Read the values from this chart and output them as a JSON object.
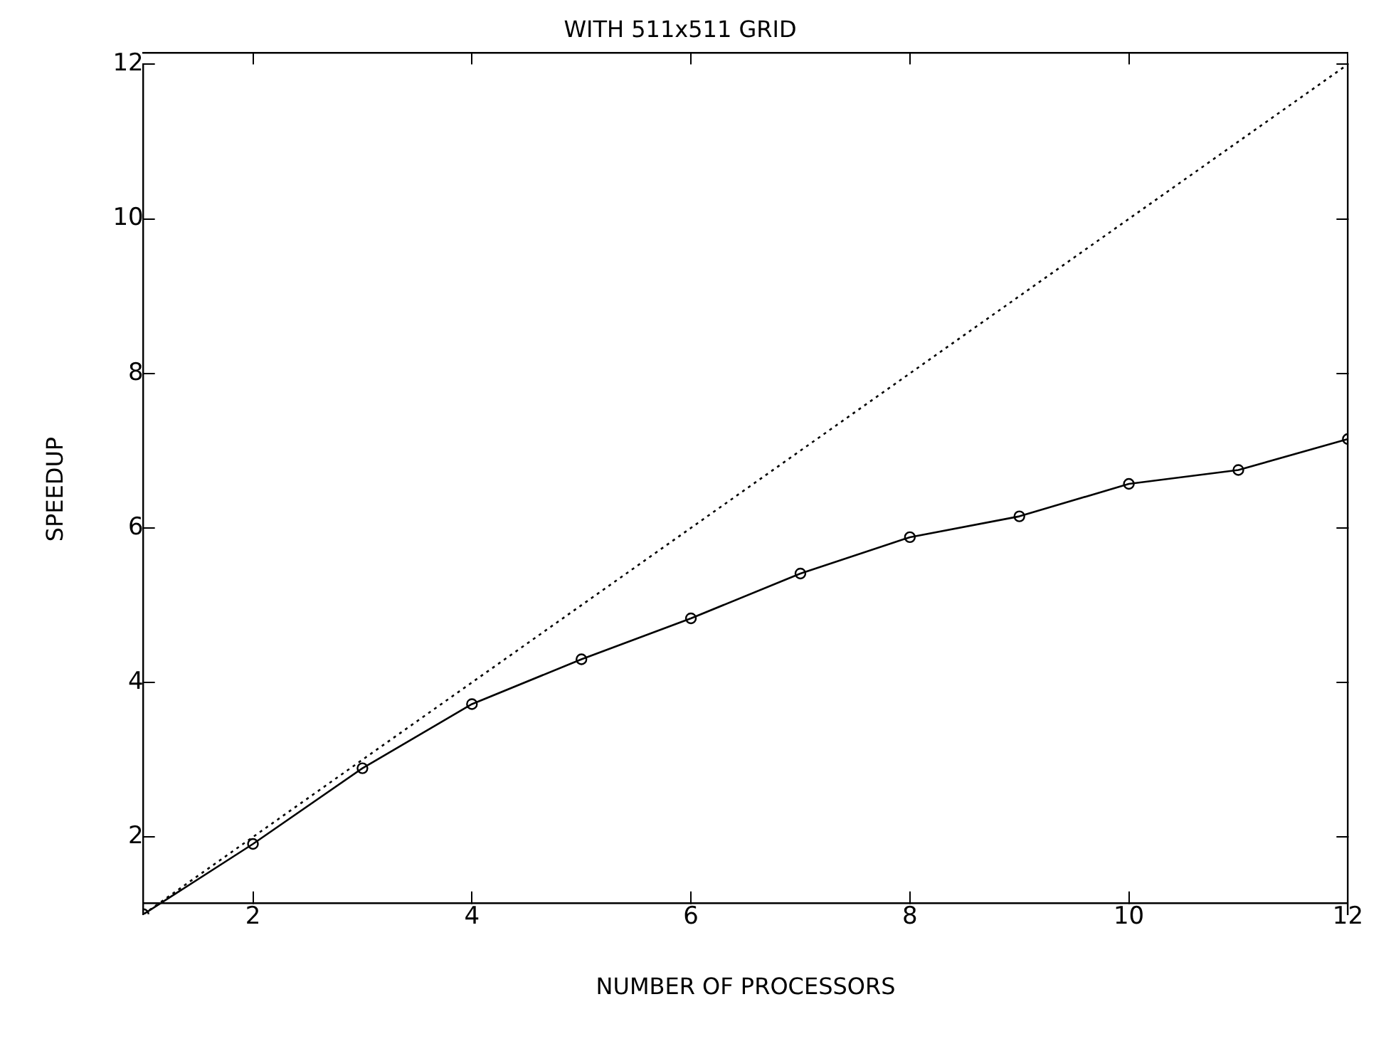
{
  "chart_data": {
    "type": "line",
    "title": "WITH 511x511 GRID",
    "xlabel": "NUMBER OF PROCESSORS",
    "ylabel": "SPEEDUP",
    "x": [
      1,
      2,
      3,
      4,
      5,
      6,
      7,
      8,
      9,
      10,
      11,
      12
    ],
    "series": [
      {
        "color": "#000000",
        "values": [
          1,
          1.91,
          2.89,
          3.72,
          4.3,
          4.83,
          5.41,
          5.88,
          6.15,
          6.57,
          6.75,
          7.15
        ],
        "marker": "circle",
        "line_style": "solid"
      },
      {
        "color": "#000000",
        "x": [
          1,
          12
        ],
        "values": [
          1,
          12
        ],
        "marker": "none",
        "line_style": "dotted"
      }
    ],
    "xlim": [
      1,
      12
    ],
    "xticks": [
      2,
      4,
      6,
      8,
      10,
      12
    ],
    "ylim": [
      1,
      12
    ],
    "yticks": [
      2,
      4,
      6,
      8,
      10,
      12
    ],
    "grid": false,
    "legend": false
  }
}
